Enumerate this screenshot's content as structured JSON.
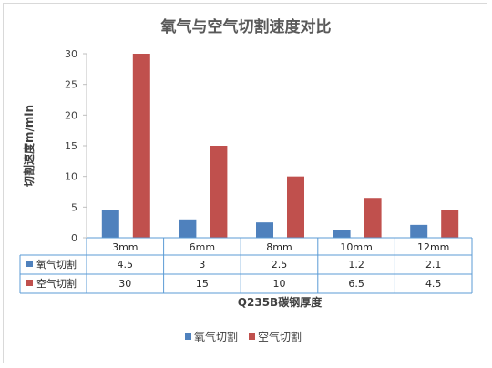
{
  "chart_data": {
    "type": "bar",
    "title": "氧气与空气切割速度对比",
    "xlabel": "Q235B碳钢厚度",
    "ylabel": "切割速度m/min",
    "ylim": [
      0,
      30
    ],
    "yticks": [
      0,
      5,
      10,
      15,
      20,
      25,
      30
    ],
    "categories": [
      "3mm",
      "6mm",
      "8mm",
      "10mm",
      "12mm"
    ],
    "series": [
      {
        "name": "氧气切割",
        "color": "#4f81bd",
        "values": [
          4.5,
          3,
          2.5,
          1.2,
          2.1
        ],
        "labels": [
          "4.5",
          "3",
          "2.5",
          "1.2",
          "2.1"
        ]
      },
      {
        "name": "空气切割",
        "color": "#c0504d",
        "values": [
          30,
          15,
          10,
          6.5,
          4.5
        ],
        "labels": [
          "30",
          "15",
          "10",
          "6.5",
          "4.5"
        ]
      }
    ],
    "grid": false,
    "legend": "bottom",
    "data_table": true
  }
}
